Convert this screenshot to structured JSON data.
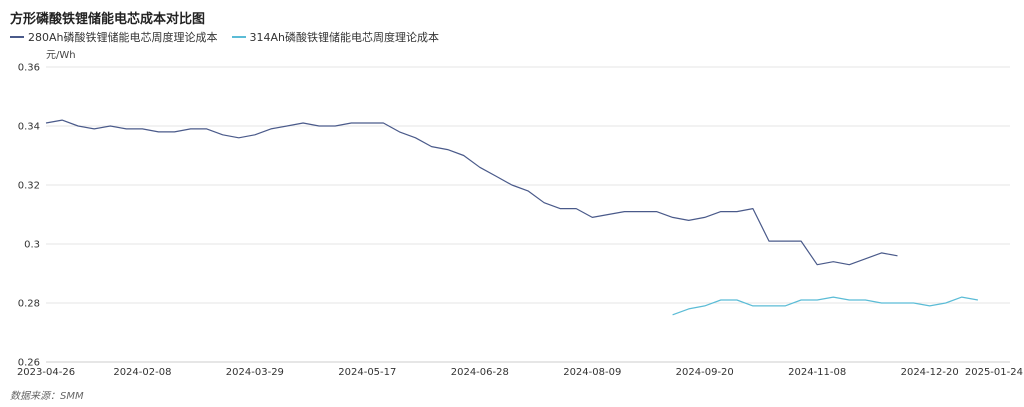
{
  "chart_data": {
    "type": "line",
    "title": "方形磷酸铁锂储能电芯成本对比图",
    "ylabel": "元/Wh",
    "ylim": [
      0.26,
      0.36
    ],
    "yticks": [
      "0.36",
      "0.34",
      "0.32",
      "0.3",
      "0.28",
      "0.26"
    ],
    "yticks_values": [
      0.36,
      0.34,
      0.32,
      0.3,
      0.28,
      0.26
    ],
    "grid": true,
    "legend": "top-left",
    "xtick_labels": [
      "2023-04-26",
      "2024-02-08",
      "2024-03-29",
      "2024-05-17",
      "2024-06-28",
      "2024-08-09",
      "2024-09-20",
      "2024-11-08",
      "2024-12-20",
      "2025-01-24"
    ],
    "xtick_index": [
      0,
      6,
      13,
      20,
      27,
      34,
      41,
      48,
      55,
      59
    ],
    "n_points": 61,
    "series": [
      {
        "name": "280Ah磷酸铁锂储能电芯周度理论成本",
        "color": "#4a5a8a",
        "start_index": 0,
        "values": [
          0.341,
          0.342,
          0.34,
          0.339,
          0.34,
          0.339,
          0.339,
          0.338,
          0.338,
          0.339,
          0.339,
          0.337,
          0.336,
          0.337,
          0.339,
          0.34,
          0.341,
          0.34,
          0.34,
          0.341,
          0.341,
          0.341,
          0.338,
          0.336,
          0.333,
          0.332,
          0.33,
          0.326,
          0.323,
          0.32,
          0.318,
          0.314,
          0.312,
          0.312,
          0.309,
          0.31,
          0.311,
          0.311,
          0.311,
          0.309,
          0.308,
          0.309,
          0.311,
          0.311,
          0.312,
          0.301,
          0.301,
          0.301,
          0.293,
          0.294,
          0.293,
          0.295,
          0.297,
          0.296
        ]
      },
      {
        "name": "314Ah磷酸铁锂储能电芯周度理论成本",
        "color": "#5bbcd6",
        "start_index": 39,
        "values": [
          0.276,
          0.278,
          0.279,
          0.281,
          0.281,
          0.279,
          0.279,
          0.279,
          0.281,
          0.281,
          0.282,
          0.281,
          0.281,
          0.28,
          0.28,
          0.28,
          0.279,
          0.28,
          0.282,
          0.281
        ]
      }
    ]
  },
  "source": "数据来源：SMM"
}
